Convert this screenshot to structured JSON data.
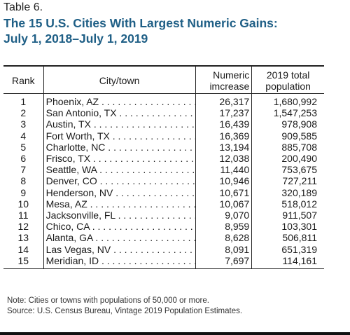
{
  "label": "Table 6.",
  "title_line1": "The 15 U.S. Cities With Largest Numeric Gains:",
  "title_line2": "July 1, 2018–July 1, 2019",
  "headers": {
    "rank": "Rank",
    "city": "City/town",
    "increase_line1": "Numeric",
    "increase_line2": "imcrease",
    "population_line1": "2019 total",
    "population_line2": "population"
  },
  "rows": [
    {
      "rank": "1",
      "city": "Phoenix, AZ",
      "increase": "26,317",
      "population": "1,680,992"
    },
    {
      "rank": "2",
      "city": "San Antonio, TX",
      "increase": "17,237",
      "population": "1,547,253"
    },
    {
      "rank": "3",
      "city": "Austin, TX",
      "increase": "16,439",
      "population": "978,908"
    },
    {
      "rank": "4",
      "city": "Fort Worth, TX",
      "increase": "16,369",
      "population": "909,585"
    },
    {
      "rank": "5",
      "city": "Charlotte, NC",
      "increase": "13,194",
      "population": "885,708"
    },
    {
      "rank": "6",
      "city": "Frisco, TX",
      "increase": "12,038",
      "population": "200,490"
    },
    {
      "rank": "7",
      "city": "Seattle, WA",
      "increase": "11,440",
      "population": "753,675"
    },
    {
      "rank": "8",
      "city": "Denver, CO",
      "increase": "10,946",
      "population": "727,211"
    },
    {
      "rank": "9",
      "city": "Henderson, NV",
      "increase": "10,671",
      "population": "320,189"
    },
    {
      "rank": "10",
      "city": "Mesa, AZ",
      "increase": "10,067",
      "population": "518,012"
    },
    {
      "rank": "11",
      "city": "Jacksonville, FL",
      "increase": "9,070",
      "population": "911,507"
    },
    {
      "rank": "12",
      "city": "Chico, CA",
      "increase": "8,959",
      "population": "103,301"
    },
    {
      "rank": "13",
      "city": "Alanta, GA",
      "increase": "8,628",
      "population": "506,811"
    },
    {
      "rank": "14",
      "city": "Las Vegas, NV",
      "increase": "8,091",
      "population": "651,319"
    },
    {
      "rank": "15",
      "city": "Meridian, ID",
      "increase": "7,697",
      "population": "114,161"
    }
  ],
  "note": "Note: Cities or towns with populations of 50,000 or more.",
  "source": "Source: U.S. Census Bureau, Vintage 2019 Population Estimates."
}
